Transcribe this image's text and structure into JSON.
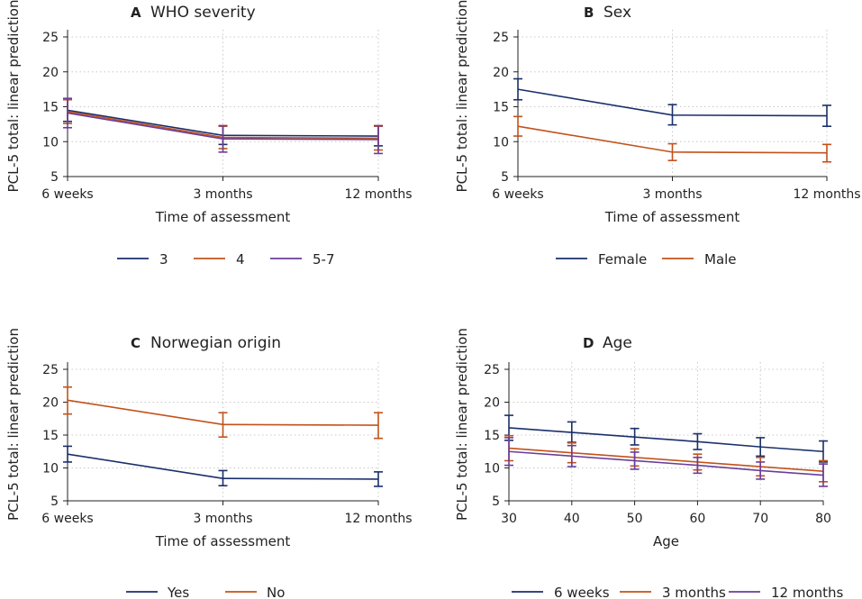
{
  "colors": {
    "navy": "#1a2f6b",
    "orange": "#c2521a",
    "purple": "#6a3d9a",
    "grid": "#c8c8c8",
    "axis": "#222222"
  },
  "chart_data": [
    {
      "letter": "A",
      "title": "WHO severity",
      "type": "line",
      "xlabel": "Time of assessment",
      "ylabel": "PCL-5 total: linear prediction",
      "categories": [
        "6 weeks",
        "3 months",
        "12 months"
      ],
      "ylim": [
        5,
        25
      ],
      "yticks": [
        5,
        10,
        15,
        20,
        25
      ],
      "series": [
        {
          "name": "3",
          "color": "navy",
          "values": [
            14.5,
            10.9,
            10.8
          ],
          "ci_low": [
            12.9,
            9.6,
            9.4
          ],
          "ci_high": [
            16.1,
            12.2,
            12.2
          ]
        },
        {
          "name": "4",
          "color": "orange",
          "values": [
            14.3,
            10.6,
            10.5
          ],
          "ci_low": [
            12.6,
            9.0,
            8.8
          ],
          "ci_high": [
            16.0,
            12.2,
            12.2
          ]
        },
        {
          "name": "5-7",
          "color": "purple",
          "values": [
            14.1,
            10.4,
            10.3
          ],
          "ci_low": [
            12.0,
            8.5,
            8.3
          ],
          "ci_high": [
            16.2,
            12.3,
            12.3
          ]
        }
      ]
    },
    {
      "letter": "B",
      "title": "Sex",
      "type": "line",
      "xlabel": "Time of assessment",
      "ylabel": "PCL-5 total: linear prediction",
      "categories": [
        "6 weeks",
        "3 months",
        "12 months"
      ],
      "ylim": [
        5,
        25
      ],
      "yticks": [
        5,
        10,
        15,
        20,
        25
      ],
      "series": [
        {
          "name": "Female",
          "color": "navy",
          "values": [
            17.5,
            13.8,
            13.7
          ],
          "ci_low": [
            16.0,
            12.4,
            12.2
          ],
          "ci_high": [
            19.0,
            15.3,
            15.2
          ]
        },
        {
          "name": "Male",
          "color": "orange",
          "values": [
            12.2,
            8.5,
            8.4
          ],
          "ci_low": [
            10.8,
            7.3,
            7.1
          ],
          "ci_high": [
            13.6,
            9.7,
            9.6
          ]
        }
      ]
    },
    {
      "letter": "C",
      "title": "Norwegian origin",
      "type": "line",
      "xlabel": "Time of assessment",
      "ylabel": "PCL-5 total: linear prediction",
      "categories": [
        "6 weeks",
        "3 months",
        "12 months"
      ],
      "ylim": [
        5,
        25
      ],
      "yticks": [
        5,
        10,
        15,
        20,
        25
      ],
      "series": [
        {
          "name": "Yes",
          "color": "navy",
          "values": [
            12.1,
            8.4,
            8.3
          ],
          "ci_low": [
            10.9,
            7.3,
            7.2
          ],
          "ci_high": [
            13.3,
            9.6,
            9.4
          ]
        },
        {
          "name": "No",
          "color": "orange",
          "values": [
            20.3,
            16.6,
            16.5
          ],
          "ci_low": [
            18.2,
            14.7,
            14.5
          ],
          "ci_high": [
            22.3,
            18.4,
            18.4
          ]
        }
      ]
    },
    {
      "letter": "D",
      "title": "Age",
      "type": "line",
      "xlabel": "Age",
      "ylabel": "PCL-5 total: linear prediction",
      "x": [
        30,
        40,
        50,
        60,
        70,
        80
      ],
      "xlim": [
        30,
        80
      ],
      "ylim": [
        5,
        25
      ],
      "yticks": [
        5,
        10,
        15,
        20,
        25
      ],
      "series": [
        {
          "name": "6 weeks",
          "color": "navy",
          "values": [
            16.1,
            15.4,
            14.7,
            14.0,
            13.2,
            12.5
          ],
          "ci_low": [
            14.2,
            13.9,
            13.5,
            12.8,
            11.8,
            10.9
          ],
          "ci_high": [
            18.0,
            17.0,
            16.0,
            15.2,
            14.6,
            14.1
          ]
        },
        {
          "name": "3 months",
          "color": "orange",
          "values": [
            13.0,
            12.3,
            11.6,
            10.9,
            10.2,
            9.5
          ],
          "ci_low": [
            11.1,
            10.8,
            10.3,
            9.7,
            8.8,
            7.9
          ],
          "ci_high": [
            14.9,
            13.8,
            12.9,
            12.1,
            11.6,
            11.1
          ]
        },
        {
          "name": "12 months",
          "color": "purple",
          "values": [
            12.5,
            11.8,
            11.1,
            10.4,
            9.6,
            8.9
          ],
          "ci_low": [
            10.4,
            10.2,
            9.8,
            9.2,
            8.3,
            7.2
          ],
          "ci_high": [
            14.6,
            13.4,
            12.4,
            11.6,
            10.9,
            10.6
          ]
        }
      ]
    }
  ]
}
